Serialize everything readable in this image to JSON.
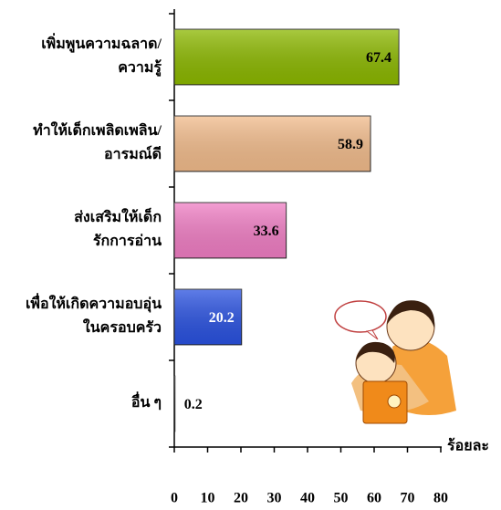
{
  "chart_data": {
    "type": "barh",
    "categories": [
      [
        "เพิ่มพูนความฉลาด/",
        "ความรู้"
      ],
      [
        "ทำให้เด็กเพลิดเพลิน/",
        "อารมณ์ดี"
      ],
      [
        "ส่งเสริมให้เด็ก",
        "รักการอ่าน"
      ],
      [
        "เพื่อให้เกิดความอบอุ่น",
        "ในครอบครัว"
      ],
      [
        "อื่น ๆ"
      ]
    ],
    "values": [
      67.4,
      58.9,
      33.6,
      20.2,
      0.2
    ],
    "colors": [
      "#8cb800",
      "#f2bc8c",
      "#f07ec4",
      "#2a52e0",
      "#8a1c1c"
    ],
    "value_label_colors": [
      "#000000",
      "#000000",
      "#000000",
      "#ffffff",
      "#000000"
    ],
    "xlabel": "ร้อยละ",
    "xlim": [
      0,
      80
    ],
    "xticks": [
      0,
      10,
      20,
      30,
      40,
      50,
      60,
      70,
      80
    ]
  }
}
